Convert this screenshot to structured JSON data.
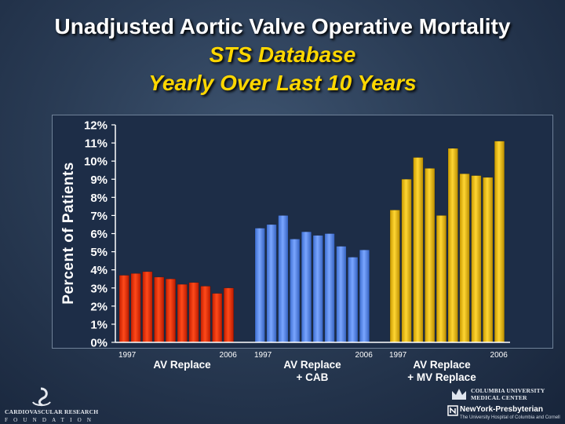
{
  "title": {
    "line1": "Unadjusted Aortic Valve Operative Mortality",
    "line2": "STS Database",
    "line3": "Yearly Over Last 10 Years"
  },
  "colors": {
    "series_av_replace": "#ff3300",
    "series_av_replace_cab": "#5b8ff0",
    "series_av_replace_mv_replace": "#f5c400",
    "title_primary": "#ffffff",
    "title_secondary": "#ffd700",
    "plot_background": "#1d2d47"
  },
  "chart_data": {
    "type": "bar",
    "ylabel": "Percent of Patients",
    "ylim": [
      0,
      12
    ],
    "yticks": [
      "0%",
      "1%",
      "2%",
      "3%",
      "4%",
      "5%",
      "6%",
      "7%",
      "8%",
      "9%",
      "10%",
      "11%",
      "12%"
    ],
    "grid": false,
    "legend": "none",
    "groups": [
      {
        "label_line1": "AV Replace",
        "label_line2": "",
        "start_year_label": "1997",
        "end_year_label": "2006",
        "color": "#ff3300",
        "values": [
          3.7,
          3.8,
          3.9,
          3.6,
          3.5,
          3.2,
          3.3,
          3.1,
          2.7,
          3.0
        ]
      },
      {
        "label_line1": "AV Replace",
        "label_line2": "+ CAB",
        "start_year_label": "1997",
        "end_year_label": "2006",
        "color": "#5b8ff0",
        "values": [
          6.3,
          6.5,
          7.0,
          5.7,
          6.1,
          5.9,
          6.0,
          5.3,
          4.7,
          5.1
        ]
      },
      {
        "label_line1": "AV Replace",
        "label_line2": "+ MV Replace",
        "start_year_label": "1997",
        "end_year_label": "2006",
        "color": "#f5c400",
        "values": [
          7.3,
          9.0,
          10.2,
          9.6,
          7.0,
          10.7,
          9.3,
          9.2,
          9.1,
          11.1
        ]
      }
    ]
  },
  "logos": {
    "left_line1": "CARDIOVASCULAR RESEARCH",
    "left_line2": "FOUNDATION",
    "right_line1": "COLUMBIA UNIVERSITY",
    "right_line2": "MEDICAL CENTER",
    "right_line3": "NewYork-Presbyterian",
    "right_line4": "The University Hospital of Columbia and Cornell"
  }
}
